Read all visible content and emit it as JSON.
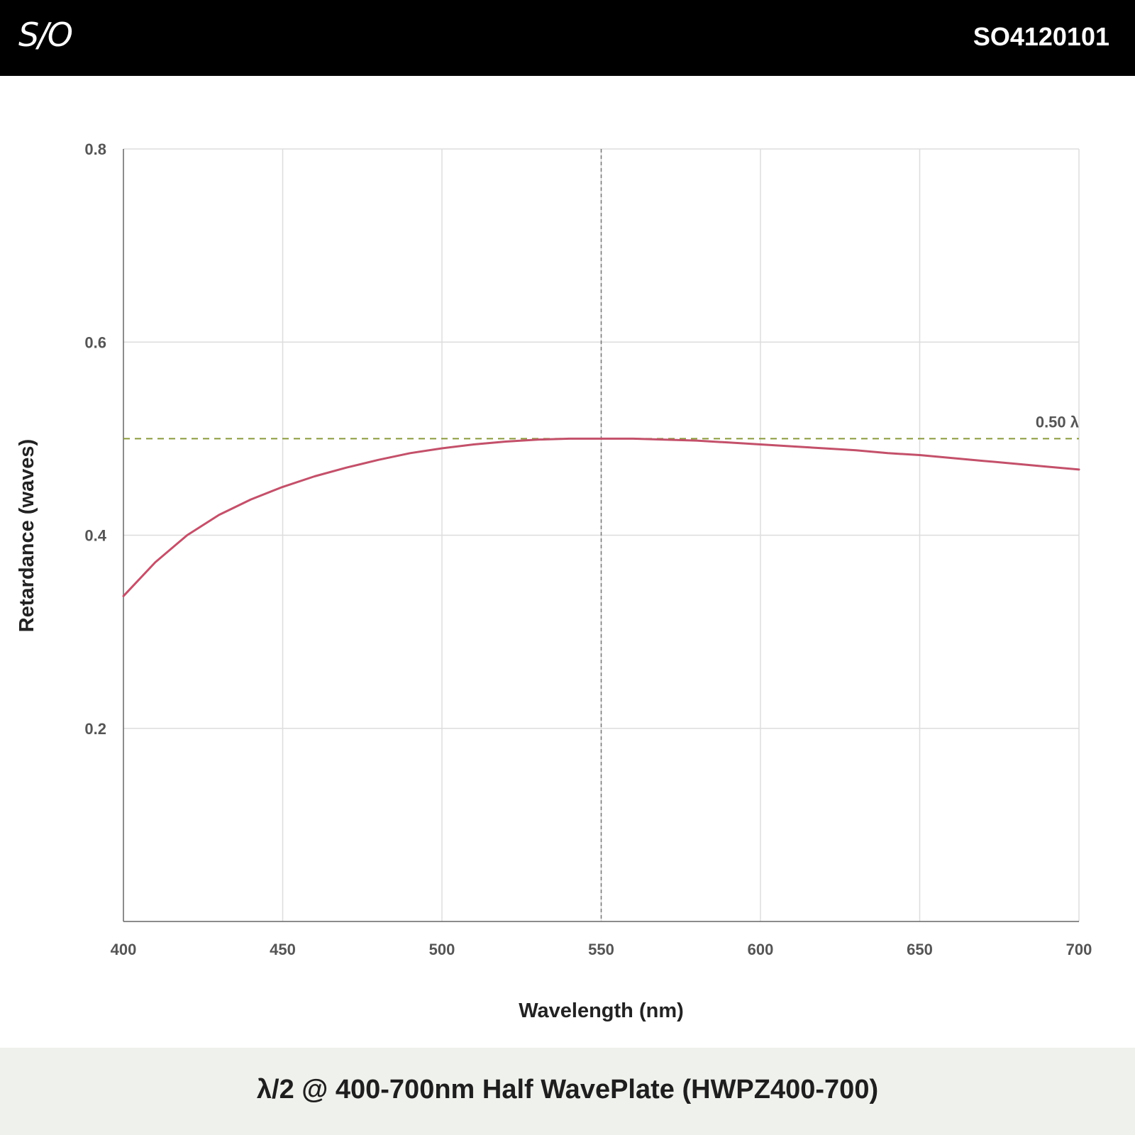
{
  "header": {
    "logo_text": "S/O",
    "product_code": "SO4120101"
  },
  "footer": {
    "title": "λ/2 @ 400-700nm Half WavePlate (HWPZ400-700)"
  },
  "chart_data": {
    "type": "line",
    "xlabel": "Wavelength (nm)",
    "ylabel": "Retardance (waves)",
    "xlim": [
      400,
      700
    ],
    "ylim": [
      0,
      0.8
    ],
    "x_ticks": [
      400,
      450,
      500,
      550,
      600,
      650,
      700
    ],
    "y_ticks": [
      0.2,
      0.4,
      0.6,
      0.8
    ],
    "grid": true,
    "reference_line": {
      "y": 0.5,
      "label": "0.50 λ",
      "color": "#8a9a3c"
    },
    "center_line": {
      "x": 550
    },
    "series": [
      {
        "color": "#c4506a",
        "x": [
          400,
          410,
          420,
          430,
          440,
          450,
          460,
          470,
          480,
          490,
          500,
          510,
          520,
          530,
          540,
          550,
          560,
          570,
          580,
          590,
          600,
          610,
          620,
          630,
          640,
          650,
          660,
          670,
          680,
          690,
          700
        ],
        "values": [
          0.337,
          0.372,
          0.4,
          0.421,
          0.437,
          0.45,
          0.461,
          0.47,
          0.478,
          0.485,
          0.49,
          0.494,
          0.497,
          0.499,
          0.5,
          0.5,
          0.5,
          0.499,
          0.498,
          0.496,
          0.494,
          0.492,
          0.49,
          0.488,
          0.485,
          0.483,
          0.48,
          0.477,
          0.474,
          0.471,
          0.468
        ]
      }
    ]
  }
}
